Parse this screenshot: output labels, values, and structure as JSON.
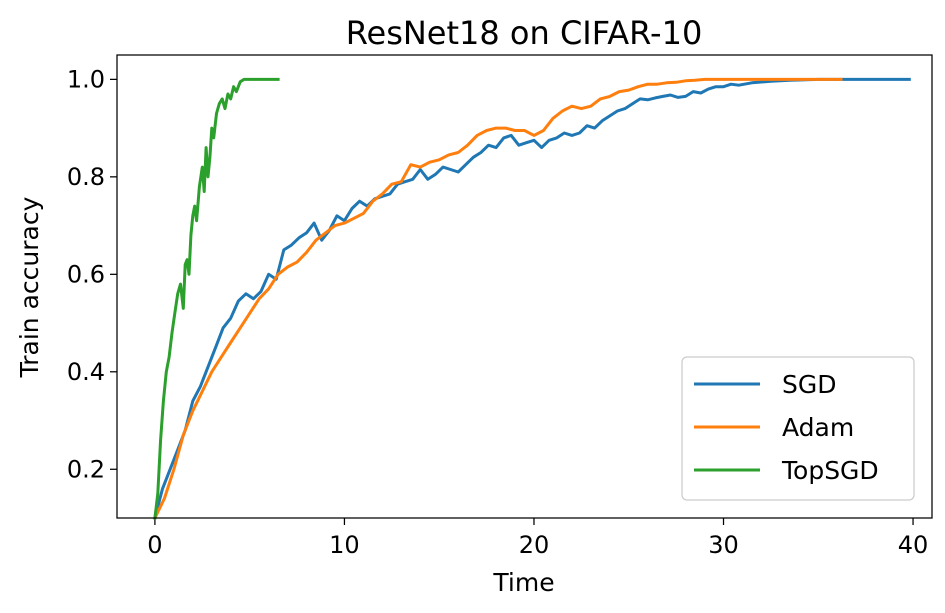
{
  "chart_data": {
    "type": "line",
    "title": "ResNet18 on CIFAR-10",
    "xlabel": "Time",
    "ylabel": "Train accuracy",
    "xlim": [
      -2,
      41
    ],
    "ylim": [
      0.1,
      1.05
    ],
    "xticks": [
      0,
      10,
      20,
      30,
      40
    ],
    "yticks": [
      0.2,
      0.4,
      0.6,
      0.8,
      1.0
    ],
    "xtick_labels": [
      "0",
      "10",
      "20",
      "30",
      "40"
    ],
    "ytick_labels": [
      "0.2",
      "0.4",
      "0.6",
      "0.8",
      "1.0"
    ],
    "grid": false,
    "legend_position": "lower-right",
    "series": [
      {
        "name": "SGD",
        "color": "#1f77b4",
        "x": [
          0,
          0.4,
          0.8,
          1.2,
          1.6,
          2.0,
          2.4,
          2.8,
          3.2,
          3.6,
          4.0,
          4.4,
          4.8,
          5.2,
          5.6,
          6.0,
          6.4,
          6.8,
          7.2,
          7.6,
          8.0,
          8.4,
          8.8,
          9.2,
          9.6,
          10.0,
          10.4,
          10.8,
          11.2,
          11.6,
          12.0,
          12.4,
          12.8,
          13.2,
          13.6,
          14.0,
          14.4,
          14.8,
          15.2,
          15.6,
          16.0,
          16.4,
          16.8,
          17.2,
          17.6,
          18.0,
          18.4,
          18.8,
          19.2,
          19.6,
          20.0,
          20.4,
          20.8,
          21.2,
          21.6,
          22.0,
          22.4,
          22.8,
          23.2,
          23.6,
          24.0,
          24.4,
          24.8,
          25.2,
          25.6,
          26.0,
          26.4,
          26.8,
          27.2,
          27.6,
          28.0,
          28.4,
          28.8,
          29.2,
          29.6,
          30.0,
          30.4,
          30.8,
          31.5,
          32.5,
          33.5,
          35.0,
          37.0,
          39.0,
          39.8
        ],
        "y": [
          0.1,
          0.16,
          0.2,
          0.24,
          0.28,
          0.34,
          0.37,
          0.41,
          0.45,
          0.49,
          0.51,
          0.545,
          0.56,
          0.55,
          0.565,
          0.6,
          0.59,
          0.65,
          0.66,
          0.675,
          0.685,
          0.705,
          0.67,
          0.69,
          0.72,
          0.71,
          0.735,
          0.75,
          0.74,
          0.755,
          0.76,
          0.765,
          0.785,
          0.79,
          0.795,
          0.815,
          0.795,
          0.805,
          0.82,
          0.815,
          0.81,
          0.825,
          0.84,
          0.85,
          0.865,
          0.86,
          0.88,
          0.885,
          0.865,
          0.87,
          0.875,
          0.86,
          0.875,
          0.88,
          0.89,
          0.885,
          0.89,
          0.905,
          0.9,
          0.915,
          0.925,
          0.935,
          0.94,
          0.95,
          0.96,
          0.958,
          0.962,
          0.965,
          0.968,
          0.963,
          0.965,
          0.975,
          0.972,
          0.98,
          0.985,
          0.985,
          0.99,
          0.988,
          0.993,
          0.996,
          0.998,
          1.0,
          1.0,
          1.0,
          1.0
        ]
      },
      {
        "name": "Adam",
        "color": "#ff7f0e",
        "x": [
          0,
          0.5,
          1.0,
          1.5,
          2.0,
          2.5,
          3.0,
          3.5,
          4.0,
          4.5,
          5.0,
          5.5,
          6.0,
          6.5,
          7.0,
          7.5,
          8.0,
          8.5,
          9.0,
          9.5,
          10.0,
          10.5,
          11.0,
          11.5,
          12.0,
          12.5,
          13.0,
          13.5,
          14.0,
          14.5,
          15.0,
          15.5,
          16.0,
          16.5,
          17.0,
          17.5,
          18.0,
          18.5,
          19.0,
          19.5,
          20.0,
          20.5,
          21.0,
          21.5,
          22.0,
          22.5,
          23.0,
          23.5,
          24.0,
          24.5,
          25.0,
          25.5,
          26.0,
          26.5,
          27.0,
          27.5,
          28.0,
          28.5,
          29.0,
          30.0,
          31.0,
          32.0,
          33.0,
          34.0,
          35.0,
          36.2
        ],
        "y": [
          0.1,
          0.14,
          0.2,
          0.27,
          0.32,
          0.36,
          0.4,
          0.43,
          0.46,
          0.49,
          0.52,
          0.55,
          0.57,
          0.6,
          0.615,
          0.625,
          0.645,
          0.67,
          0.685,
          0.7,
          0.705,
          0.715,
          0.725,
          0.75,
          0.765,
          0.785,
          0.79,
          0.825,
          0.82,
          0.83,
          0.835,
          0.845,
          0.85,
          0.865,
          0.885,
          0.895,
          0.9,
          0.9,
          0.895,
          0.895,
          0.885,
          0.895,
          0.92,
          0.935,
          0.945,
          0.94,
          0.945,
          0.96,
          0.965,
          0.975,
          0.978,
          0.985,
          0.99,
          0.99,
          0.993,
          0.994,
          0.997,
          0.998,
          1.0,
          1.0,
          1.0,
          1.0,
          1.0,
          1.0,
          1.0,
          1.0
        ]
      },
      {
        "name": "TopSGD",
        "color": "#2ca02c",
        "x": [
          0,
          0.15,
          0.3,
          0.45,
          0.6,
          0.75,
          0.9,
          1.05,
          1.2,
          1.35,
          1.5,
          1.6,
          1.7,
          1.8,
          1.9,
          2.0,
          2.1,
          2.2,
          2.35,
          2.5,
          2.6,
          2.7,
          2.8,
          2.9,
          3.0,
          3.1,
          3.25,
          3.4,
          3.55,
          3.7,
          3.85,
          4.0,
          4.15,
          4.3,
          4.5,
          4.7,
          5.0,
          5.5,
          6.0,
          6.5
        ],
        "y": [
          0.1,
          0.15,
          0.26,
          0.34,
          0.4,
          0.43,
          0.48,
          0.52,
          0.56,
          0.58,
          0.53,
          0.62,
          0.63,
          0.6,
          0.68,
          0.72,
          0.74,
          0.71,
          0.78,
          0.82,
          0.77,
          0.86,
          0.8,
          0.84,
          0.9,
          0.88,
          0.93,
          0.95,
          0.96,
          0.94,
          0.97,
          0.96,
          0.985,
          0.975,
          0.995,
          1.0,
          1.0,
          1.0,
          1.0,
          1.0
        ]
      }
    ]
  }
}
